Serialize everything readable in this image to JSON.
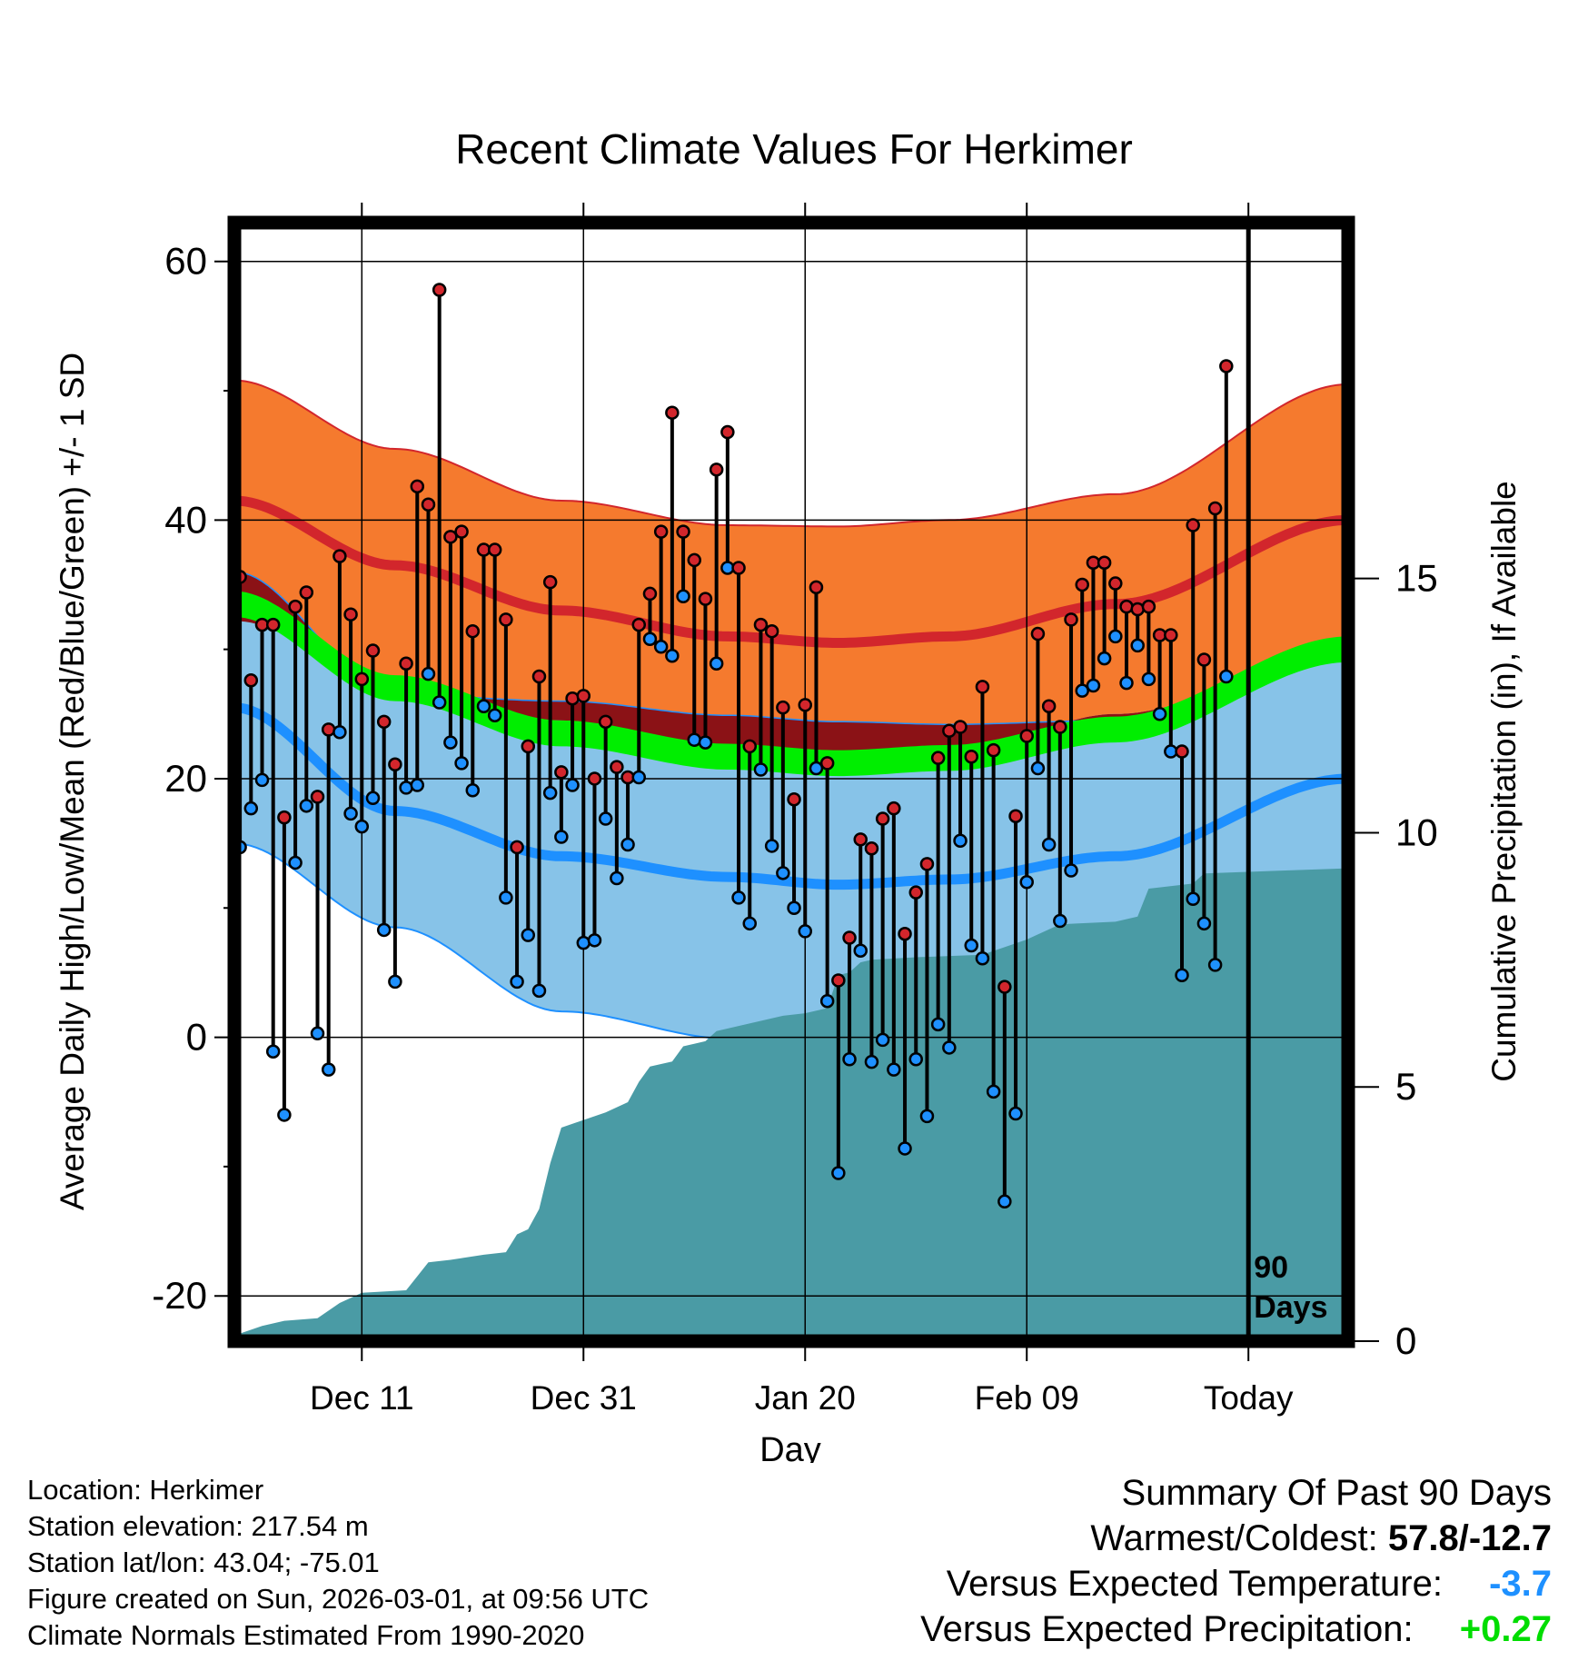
{
  "chart_data": {
    "type": "line",
    "title": "Recent Climate Values For Herkimer",
    "xlabel": "Day",
    "ylabel": "Average Daily High/Low/Mean (Red/Blue/Green) +/- 1 SD",
    "ylabel_right": "Cumulative Precipitation (in), If Available",
    "x_ticks": [
      {
        "day": 12,
        "label": "Dec 11"
      },
      {
        "day": 32,
        "label": "Dec 31"
      },
      {
        "day": 52,
        "label": "Jan 20"
      },
      {
        "day": 72,
        "label": "Feb 09"
      },
      {
        "day": 92,
        "label": "Today"
      }
    ],
    "y_ticks": [
      -20,
      0,
      20,
      40,
      60
    ],
    "ylim": [
      -23.5,
      63
    ],
    "xlim": [
      0.5,
      101
    ],
    "y2_ticks": [
      0,
      5,
      10,
      15
    ],
    "y2_range": [
      0,
      22
    ],
    "today_marker": {
      "day": 92,
      "label_line1": "90",
      "label_line2": "Days"
    },
    "colors": {
      "high_band": "#F57A2E",
      "high_mean": "#D2262C",
      "low_band": "#87C3E8",
      "low_mean": "#1E90FF",
      "overlap": "#8B1216",
      "mean_band": "#00EE00",
      "precip": "#4A9BA5",
      "high_dot": "#D2262C",
      "low_dot": "#1E90FF"
    },
    "daily": [
      [
        1,
        35.6,
        14.7
      ],
      [
        2,
        27.6,
        17.7
      ],
      [
        3,
        31.9,
        19.9
      ],
      [
        4,
        31.9,
        -1.1
      ],
      [
        5,
        17.0,
        -6.0
      ],
      [
        6,
        33.3,
        13.5
      ],
      [
        7,
        34.4,
        17.9
      ],
      [
        8,
        18.6,
        0.3
      ],
      [
        9,
        23.8,
        -2.5
      ],
      [
        10,
        37.2,
        23.6
      ],
      [
        11,
        32.7,
        17.3
      ],
      [
        12,
        27.7,
        16.3
      ],
      [
        13,
        29.9,
        18.5
      ],
      [
        14,
        24.4,
        8.3
      ],
      [
        15,
        21.1,
        4.3
      ],
      [
        16,
        28.9,
        19.3
      ],
      [
        17,
        42.6,
        19.5
      ],
      [
        18,
        41.2,
        28.1
      ],
      [
        19,
        57.8,
        25.9
      ],
      [
        20,
        38.7,
        22.8
      ],
      [
        21,
        39.1,
        21.2
      ],
      [
        22,
        31.4,
        19.1
      ],
      [
        23,
        37.7,
        25.6
      ],
      [
        24,
        37.7,
        24.9
      ],
      [
        25,
        32.3,
        10.8
      ],
      [
        26,
        14.7,
        4.3
      ],
      [
        27,
        22.5,
        7.9
      ],
      [
        28,
        27.9,
        3.6
      ],
      [
        29,
        35.2,
        18.9
      ],
      [
        30,
        20.5,
        15.5
      ],
      [
        31,
        26.2,
        19.5
      ],
      [
        32,
        26.4,
        7.3
      ],
      [
        33,
        20.0,
        7.5
      ],
      [
        34,
        24.4,
        16.9
      ],
      [
        35,
        20.9,
        12.3
      ],
      [
        36,
        20.1,
        14.9
      ],
      [
        37,
        31.9,
        20.1
      ],
      [
        38,
        34.3,
        30.8
      ],
      [
        39,
        39.1,
        30.2
      ],
      [
        40,
        48.3,
        29.5
      ],
      [
        41,
        39.1,
        34.1
      ],
      [
        42,
        36.9,
        23.0
      ],
      [
        43,
        33.9,
        22.8
      ],
      [
        44,
        43.9,
        28.9
      ],
      [
        45,
        46.8,
        36.3
      ],
      [
        46,
        36.3,
        10.8
      ],
      [
        47,
        22.5,
        8.8
      ],
      [
        48,
        31.9,
        20.7
      ],
      [
        49,
        31.4,
        14.8
      ],
      [
        50,
        25.5,
        12.7
      ],
      [
        51,
        18.4,
        10.0
      ],
      [
        52,
        25.7,
        8.2
      ],
      [
        53,
        34.8,
        20.8
      ],
      [
        54,
        21.2,
        2.8
      ],
      [
        55,
        4.4,
        -10.5
      ],
      [
        56,
        7.7,
        -1.7
      ],
      [
        57,
        15.3,
        6.7
      ],
      [
        58,
        14.6,
        -1.9
      ],
      [
        59,
        16.9,
        -0.2
      ],
      [
        60,
        17.7,
        -2.5
      ],
      [
        61,
        8.0,
        -8.6
      ],
      [
        62,
        11.2,
        -1.7
      ],
      [
        63,
        13.4,
        -6.1
      ],
      [
        64,
        21.6,
        1.0
      ],
      [
        65,
        23.7,
        -0.8
      ],
      [
        66,
        24.0,
        15.2
      ],
      [
        67,
        21.7,
        7.1
      ],
      [
        68,
        27.1,
        6.1
      ],
      [
        69,
        22.2,
        -4.2
      ],
      [
        70,
        3.9,
        -12.7
      ],
      [
        71,
        17.1,
        -5.9
      ],
      [
        72,
        23.3,
        12.0
      ],
      [
        73,
        31.2,
        20.8
      ],
      [
        74,
        25.6,
        14.9
      ],
      [
        75,
        24.0,
        9.0
      ],
      [
        76,
        32.3,
        12.9
      ],
      [
        77,
        35.0,
        26.8
      ],
      [
        78,
        36.7,
        27.2
      ],
      [
        79,
        36.7,
        29.3
      ],
      [
        80,
        35.1,
        31.0
      ],
      [
        81,
        33.3,
        27.4
      ],
      [
        82,
        33.1,
        30.3
      ],
      [
        83,
        33.3,
        27.7
      ],
      [
        84,
        31.1,
        25.0
      ],
      [
        85,
        31.1,
        22.1
      ],
      [
        86,
        22.1,
        4.8
      ],
      [
        87,
        39.6,
        10.7
      ],
      [
        88,
        29.2,
        8.8
      ],
      [
        89,
        40.9,
        5.6
      ],
      [
        90,
        51.9,
        27.9
      ]
    ],
    "normals": {
      "days": [
        0.5,
        15,
        30,
        45,
        55,
        65,
        80,
        101
      ],
      "high_mean": [
        41.5,
        36.5,
        33.0,
        31.0,
        30.5,
        31.0,
        33.5,
        40.0
      ],
      "high_sd": [
        9.3,
        9.0,
        8.5,
        8.6,
        9.0,
        9.0,
        8.5,
        10.5
      ],
      "low_mean": [
        25.5,
        17.5,
        14.0,
        12.4,
        11.8,
        12.2,
        14.0,
        20.0
      ],
      "low_sd": [
        10.5,
        9.0,
        12.0,
        12.5,
        12.6,
        12.0,
        10.5,
        10.8
      ],
      "mean_mean": [
        33.5,
        27.0,
        23.5,
        21.7,
        21.2,
        21.6,
        23.8,
        30.0
      ],
      "mean_sd": [
        1.0,
        1.0,
        1.0,
        1.0,
        1.0,
        1.0,
        1.0,
        1.0
      ]
    },
    "precip_cumulative": [
      [
        1,
        0.15
      ],
      [
        3,
        0.3
      ],
      [
        5,
        0.4
      ],
      [
        8,
        0.45
      ],
      [
        10,
        0.75
      ],
      [
        12,
        0.95
      ],
      [
        16,
        1.0
      ],
      [
        18,
        1.55
      ],
      [
        20,
        1.6
      ],
      [
        23,
        1.7
      ],
      [
        25,
        1.75
      ],
      [
        26,
        2.1
      ],
      [
        27,
        2.2
      ],
      [
        28,
        2.6
      ],
      [
        29,
        3.5
      ],
      [
        30,
        4.2
      ],
      [
        32,
        4.35
      ],
      [
        34,
        4.5
      ],
      [
        36,
        4.7
      ],
      [
        37,
        5.1
      ],
      [
        38,
        5.4
      ],
      [
        40,
        5.5
      ],
      [
        41,
        5.8
      ],
      [
        43,
        5.9
      ],
      [
        44,
        6.1
      ],
      [
        46,
        6.2
      ],
      [
        48,
        6.3
      ],
      [
        50,
        6.4
      ],
      [
        52,
        6.45
      ],
      [
        54,
        6.55
      ],
      [
        55,
        7.2
      ],
      [
        56,
        7.25
      ],
      [
        57,
        7.45
      ],
      [
        58,
        7.5
      ],
      [
        62,
        7.55
      ],
      [
        68,
        7.6
      ],
      [
        70,
        7.75
      ],
      [
        72,
        7.9
      ],
      [
        75,
        8.2
      ],
      [
        80,
        8.25
      ],
      [
        82,
        8.35
      ],
      [
        83,
        8.9
      ],
      [
        87,
        9.0
      ],
      [
        88,
        9.2
      ],
      [
        101,
        9.3
      ]
    ]
  },
  "footer": {
    "location": "Location: Herkimer",
    "elevation": "Station elevation: 217.54 m",
    "latlon": "Station lat/lon: 43.04; -75.01",
    "created": "Figure created on Sun, 2026-03-01, at 09:56 UTC",
    "normals": "Climate Normals Estimated From 1990-2020"
  },
  "summary": {
    "title": "Summary Of Past 90 Days",
    "warm_cold_label": "Warmest/Coldest:",
    "warm_cold_value": "57.8/-12.7",
    "temp_label": "Versus Expected Temperature:",
    "temp_value": "-3.7",
    "temp_color": "#1E90FF",
    "precip_label": "Versus Expected Precipitation:",
    "precip_value": "+0.27",
    "precip_color": "#00DD00"
  }
}
